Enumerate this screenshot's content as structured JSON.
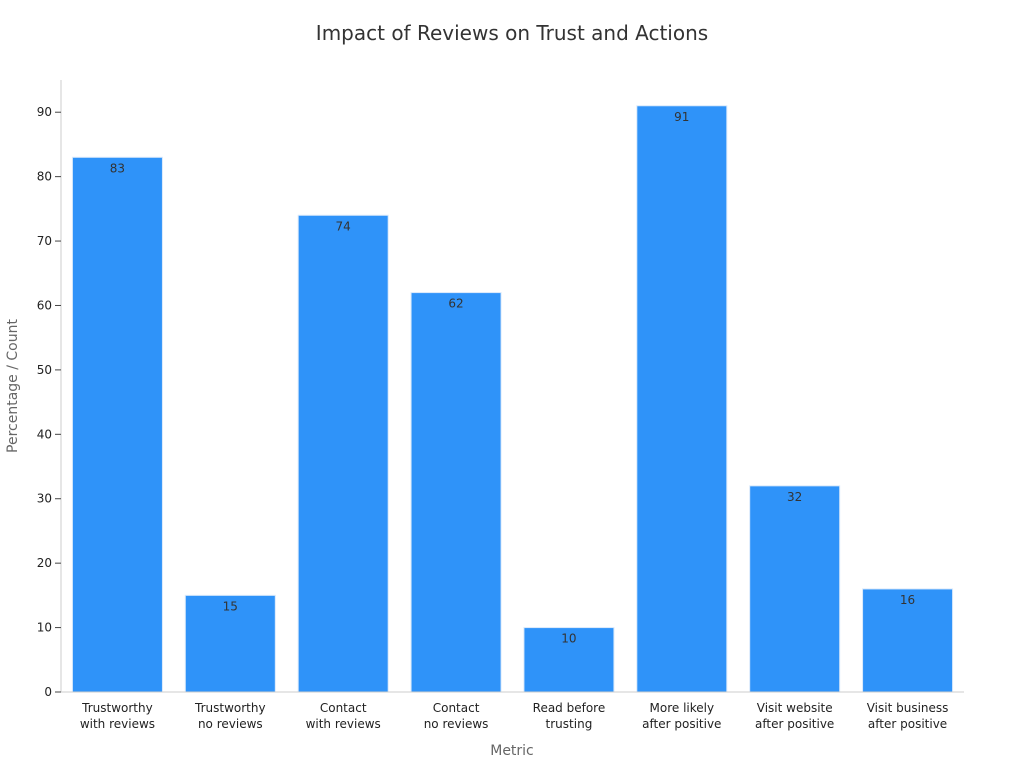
{
  "chart_data": {
    "type": "bar",
    "title": "Impact of Reviews on Trust and Actions",
    "xlabel": "Metric",
    "ylabel": "Percentage / Count",
    "ylim": [
      0,
      95
    ],
    "yticks": [
      0,
      10,
      20,
      30,
      40,
      50,
      60,
      70,
      80,
      90
    ],
    "categories": [
      [
        "Trustworthy",
        "with reviews"
      ],
      [
        "Trustworthy",
        "no reviews"
      ],
      [
        "Contact",
        "with reviews"
      ],
      [
        "Contact",
        "no reviews"
      ],
      [
        "Read before",
        "trusting"
      ],
      [
        "More likely",
        "after positive"
      ],
      [
        "Visit website",
        "after positive"
      ],
      [
        "Visit business",
        "after positive"
      ]
    ],
    "values": [
      83,
      15,
      74,
      62,
      10,
      91,
      32,
      16
    ],
    "bar_color": "#2f93f9",
    "grid": false
  }
}
